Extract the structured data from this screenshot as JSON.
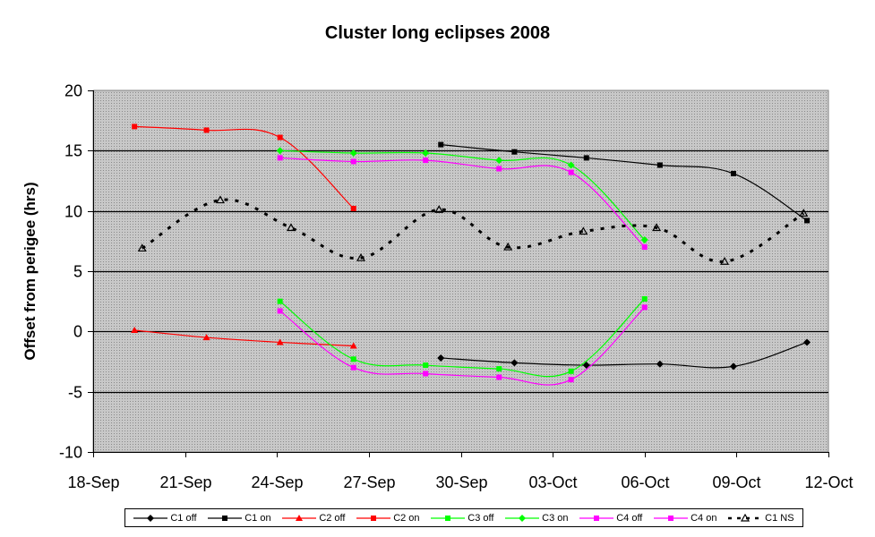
{
  "chart_data": {
    "type": "line",
    "title": "Cluster long eclipses 2008",
    "xlabel": "",
    "ylabel": "Offset from perigee (hrs)",
    "ylim": [
      -10,
      20
    ],
    "yticks": [
      20,
      15,
      10,
      5,
      0,
      -5,
      -10
    ],
    "xlim_days": [
      0,
      24
    ],
    "xticks": [
      {
        "day": 0,
        "label": "18-Sep"
      },
      {
        "day": 3,
        "label": "21-Sep"
      },
      {
        "day": 6,
        "label": "24-Sep"
      },
      {
        "day": 9,
        "label": "27-Sep"
      },
      {
        "day": 12,
        "label": "30-Sep"
      },
      {
        "day": 15,
        "label": "03-Oct"
      },
      {
        "day": 18,
        "label": "06-Oct"
      },
      {
        "day": 21,
        "label": "09-Oct"
      },
      {
        "day": 24,
        "label": "12-Oct"
      }
    ],
    "grid": {
      "horizontal": true,
      "vertical": false
    },
    "background": "dotted gray",
    "legend_position": "bottom",
    "x_note": "x values are days since 18-Sep",
    "series": [
      {
        "name": "C1 off",
        "color": "#000000",
        "marker": "diamond",
        "dash": "solid",
        "x": [
          11.35,
          13.75,
          16.1,
          18.5,
          20.9,
          23.3
        ],
        "y": [
          -2.2,
          -2.6,
          -2.8,
          -2.7,
          -2.9,
          -0.9
        ]
      },
      {
        "name": "C1 on",
        "color": "#000000",
        "marker": "square",
        "dash": "solid",
        "x": [
          11.35,
          13.75,
          16.1,
          18.5,
          20.9,
          23.3
        ],
        "y": [
          15.5,
          14.9,
          14.4,
          13.8,
          13.1,
          9.2
        ]
      },
      {
        "name": "C2 off",
        "color": "#ff0000",
        "marker": "triangle",
        "dash": "solid",
        "x": [
          1.35,
          3.7,
          6.1,
          8.5
        ],
        "y": [
          0.1,
          -0.5,
          -0.9,
          -1.2
        ]
      },
      {
        "name": "C2 on",
        "color": "#ff0000",
        "marker": "square",
        "dash": "solid",
        "x": [
          1.35,
          3.7,
          6.1,
          8.5
        ],
        "y": [
          17.0,
          16.7,
          16.1,
          10.2
        ]
      },
      {
        "name": "C3 off",
        "color": "#00ff00",
        "marker": "square",
        "dash": "solid",
        "x": [
          6.1,
          8.5,
          10.85,
          13.25,
          15.6,
          18.0
        ],
        "y": [
          2.5,
          -2.3,
          -2.8,
          -3.1,
          -3.3,
          2.7
        ]
      },
      {
        "name": "C3 on",
        "color": "#00ff00",
        "marker": "diamond",
        "dash": "solid",
        "x": [
          6.1,
          8.5,
          10.85,
          13.25,
          15.6,
          18.0
        ],
        "y": [
          15.0,
          14.8,
          14.8,
          14.2,
          13.8,
          7.6
        ]
      },
      {
        "name": "C4 off",
        "color": "#ff00ff",
        "marker": "square",
        "dash": "solid",
        "x": [
          6.1,
          8.5,
          10.85,
          13.25,
          15.6,
          18.0
        ],
        "y": [
          1.7,
          -3.0,
          -3.5,
          -3.8,
          -4.0,
          2.0
        ]
      },
      {
        "name": "C4 on",
        "color": "#ff00ff",
        "marker": "square",
        "dash": "solid",
        "x": [
          6.1,
          8.5,
          10.85,
          13.25,
          15.6,
          18.0
        ],
        "y": [
          14.4,
          14.1,
          14.2,
          13.5,
          13.2,
          7.0
        ]
      },
      {
        "name": "C1 NS",
        "color": "#000000",
        "marker": "open-triangle",
        "dash": "dashed",
        "x": [
          1.6,
          4.15,
          6.46,
          8.74,
          11.29,
          13.54,
          16.0,
          18.39,
          20.61,
          23.19
        ],
        "y": [
          6.9,
          10.9,
          8.6,
          6.1,
          10.1,
          7.0,
          8.3,
          8.6,
          5.8,
          9.8
        ]
      }
    ]
  },
  "legend": {
    "items": [
      {
        "label": "C1 off"
      },
      {
        "label": "C1 on"
      },
      {
        "label": "C2 off"
      },
      {
        "label": "C2 on"
      },
      {
        "label": "C3 off"
      },
      {
        "label": "C3 on"
      },
      {
        "label": "C4 off"
      },
      {
        "label": "C4 on"
      },
      {
        "label": "C1 NS"
      }
    ]
  }
}
